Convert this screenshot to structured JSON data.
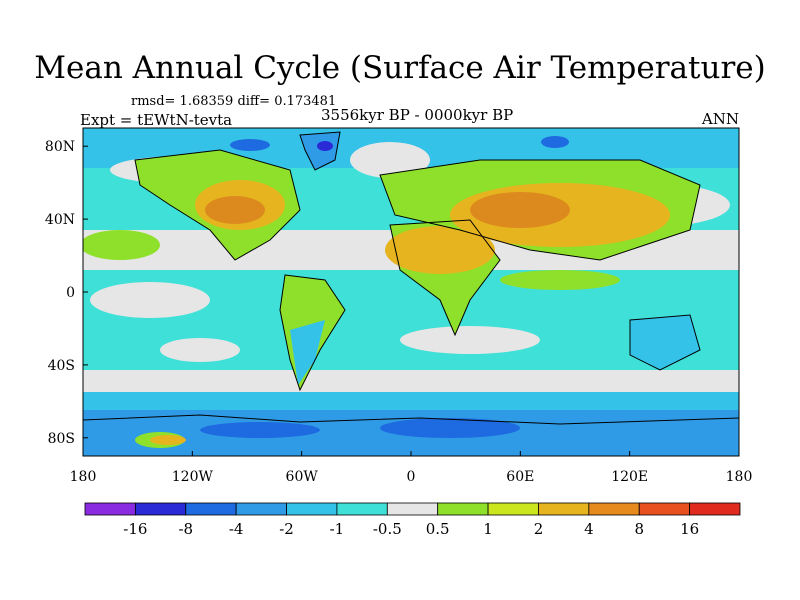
{
  "title": "Mean Annual Cycle (Surface Air Temperature)",
  "stats": "rmsd= 1.68359 diff= 0.173481",
  "experiment": "Expt = tEWtN-tevta",
  "period": "3556kyr BP - 0000kyr BP",
  "season": "ANN",
  "x_ticks": [
    "180",
    "120W",
    "60W",
    "0",
    "60E",
    "120E",
    "180"
  ],
  "x_tick_lons": [
    -180,
    -120,
    -60,
    0,
    60,
    120,
    180
  ],
  "y_ticks": [
    "80N",
    "40N",
    "0",
    "40S",
    "80S"
  ],
  "y_tick_lats": [
    80,
    40,
    0,
    -40,
    -80
  ],
  "colorbar": {
    "labels": [
      "-16",
      "-8",
      "-4",
      "-2",
      "-1",
      "-0.5",
      "0.5",
      "1",
      "2",
      "4",
      "8",
      "16"
    ],
    "colors": [
      "#8a2be2",
      "#2a2ad6",
      "#1e6ae0",
      "#2f9be6",
      "#35c2e8",
      "#3fe0d8",
      "#e6e6e6",
      "#8ee02a",
      "#cce61e",
      "#e6b41e",
      "#e68a1e",
      "#e8501e",
      "#e02a1e"
    ]
  },
  "colors": {
    "warm_high": "#dc8a1e",
    "warm_mid": "#e6b41e",
    "warm_low": "#cce61e",
    "slight_warm": "#8ee02a",
    "neutral": "#e6e6e6",
    "slight_cool": "#3fe0d8",
    "cool": "#35c2e8",
    "cooler": "#2f9be6",
    "cold": "#1e6ae0",
    "coldest": "#2a2ad6"
  }
}
